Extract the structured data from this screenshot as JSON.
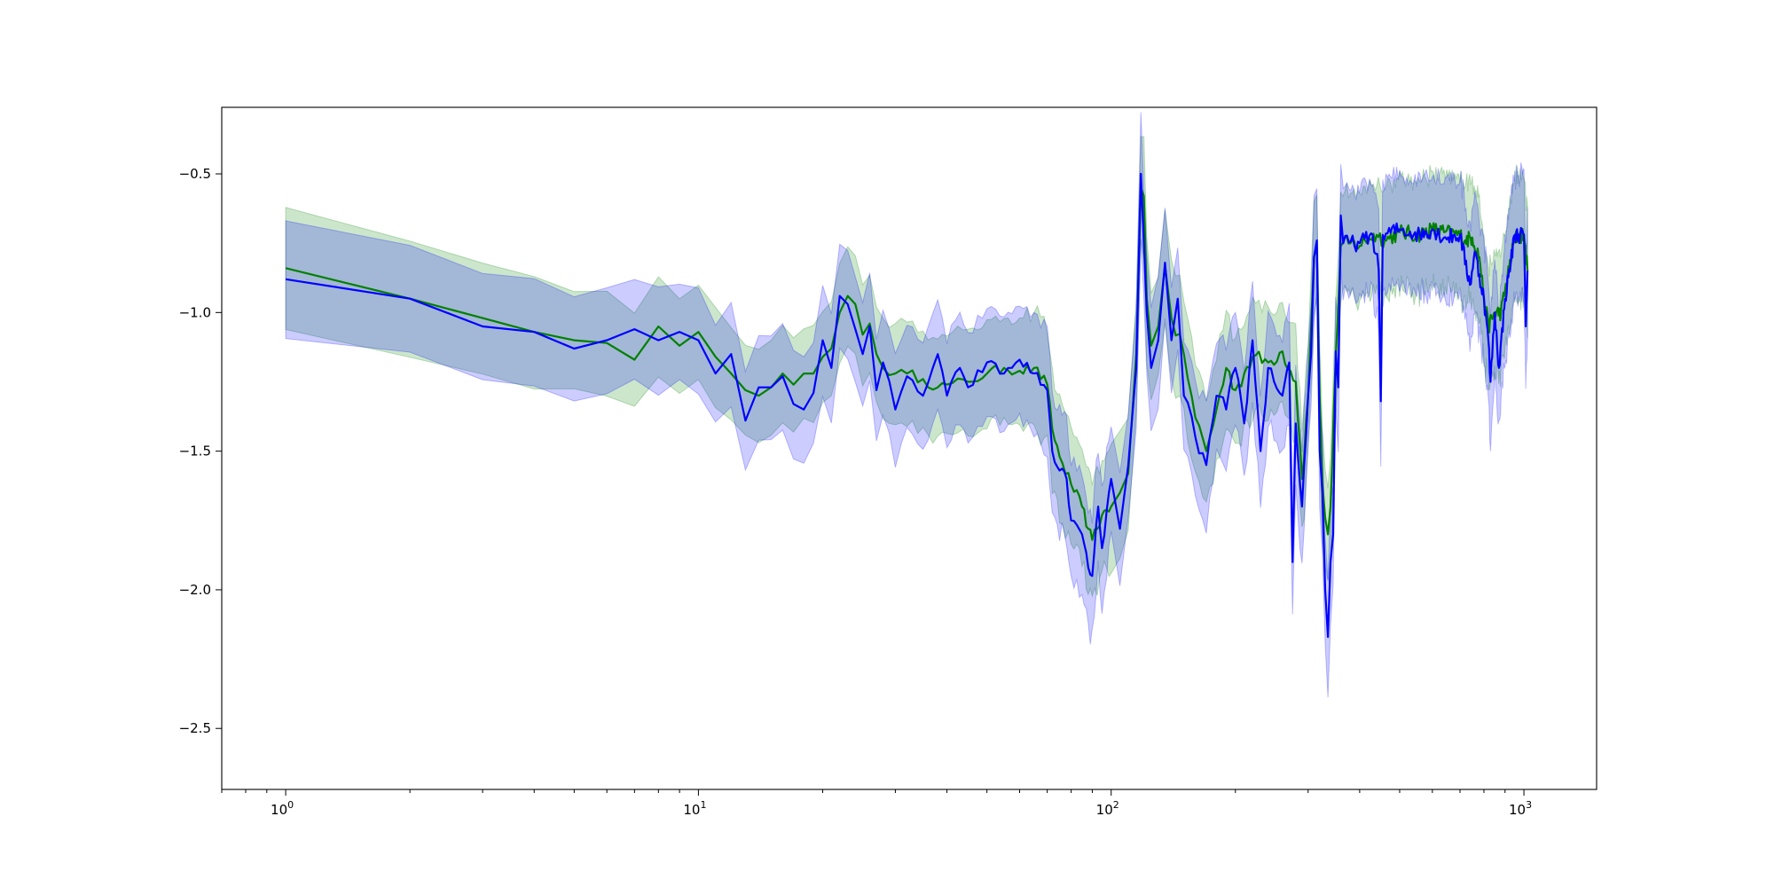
{
  "chart_data": {
    "type": "line",
    "title": "",
    "xlabel": "",
    "ylabel": "",
    "x_scale": "log",
    "xlim": [
      0.7,
      1500
    ],
    "ylim": [
      -2.72,
      -0.26
    ],
    "grid": false,
    "legend": "none",
    "x_ticks": [
      {
        "value": 1,
        "base": "10",
        "exp": "0"
      },
      {
        "value": 10,
        "base": "10",
        "exp": "1"
      },
      {
        "value": 100,
        "base": "10",
        "exp": "2"
      },
      {
        "value": 1000,
        "base": "10",
        "exp": "3"
      }
    ],
    "y_ticks": [
      {
        "value": -0.5,
        "label": "−0.5"
      },
      {
        "value": -1.0,
        "label": "−1.0"
      },
      {
        "value": -1.5,
        "label": "−1.5"
      },
      {
        "value": -2.0,
        "label": "−2.0"
      },
      {
        "value": -2.5,
        "label": "−2.5"
      }
    ],
    "series": [
      {
        "color": "#008000",
        "band_color": "#008000",
        "band_opacity": 0.2,
        "band_width": [
          [
            1,
            0.21
          ],
          [
            10,
            0.16
          ],
          [
            20,
            0.16
          ],
          [
            70,
            0.18
          ],
          [
            200,
            0.17
          ],
          [
            350,
            0.16
          ],
          [
            1000,
            0.19
          ]
        ],
        "points": [
          [
            1,
            -0.84
          ],
          [
            2,
            -0.95
          ],
          [
            3,
            -1.02
          ],
          [
            4,
            -1.07
          ],
          [
            5,
            -1.1
          ],
          [
            6,
            -1.11
          ],
          [
            7,
            -1.17
          ],
          [
            8,
            -1.05
          ],
          [
            9,
            -1.12
          ],
          [
            10,
            -1.07
          ],
          [
            11,
            -1.16
          ],
          [
            12,
            -1.22
          ],
          [
            13,
            -1.28
          ],
          [
            14,
            -1.3
          ],
          [
            15,
            -1.27
          ],
          [
            16,
            -1.22
          ],
          [
            17,
            -1.26
          ],
          [
            18,
            -1.22
          ],
          [
            19,
            -1.22
          ],
          [
            20,
            -1.16
          ],
          [
            21,
            -1.13
          ],
          [
            22,
            -1.0
          ],
          [
            23,
            -0.94
          ],
          [
            24,
            -0.97
          ],
          [
            25,
            -1.08
          ],
          [
            26,
            -1.04
          ],
          [
            27,
            -1.15
          ],
          [
            28,
            -1.2
          ],
          [
            30,
            -1.22
          ],
          [
            32,
            -1.22
          ],
          [
            35,
            -1.24
          ],
          [
            38,
            -1.27
          ],
          [
            40,
            -1.26
          ],
          [
            45,
            -1.25
          ],
          [
            50,
            -1.22
          ],
          [
            55,
            -1.2
          ],
          [
            60,
            -1.21
          ],
          [
            65,
            -1.2
          ],
          [
            70,
            -1.26
          ],
          [
            72,
            -1.42
          ],
          [
            75,
            -1.52
          ],
          [
            80,
            -1.62
          ],
          [
            85,
            -1.7
          ],
          [
            88,
            -1.78
          ],
          [
            90,
            -1.82
          ],
          [
            95,
            -1.73
          ],
          [
            100,
            -1.7
          ],
          [
            105,
            -1.65
          ],
          [
            110,
            -1.58
          ],
          [
            115,
            -1.15
          ],
          [
            118,
            -0.55
          ],
          [
            120,
            -0.58
          ],
          [
            122,
            -0.95
          ],
          [
            125,
            -1.12
          ],
          [
            130,
            -1.05
          ],
          [
            135,
            -0.83
          ],
          [
            140,
            -1.02
          ],
          [
            150,
            -1.15
          ],
          [
            160,
            -1.38
          ],
          [
            170,
            -1.5
          ],
          [
            180,
            -1.35
          ],
          [
            190,
            -1.2
          ],
          [
            200,
            -1.28
          ],
          [
            210,
            -1.22
          ],
          [
            220,
            -1.16
          ],
          [
            240,
            -1.18
          ],
          [
            260,
            -1.14
          ],
          [
            280,
            -1.25
          ],
          [
            290,
            -1.6
          ],
          [
            300,
            -1.3
          ],
          [
            310,
            -0.8
          ],
          [
            315,
            -0.76
          ],
          [
            320,
            -1.3
          ],
          [
            325,
            -1.62
          ],
          [
            330,
            -1.74
          ],
          [
            335,
            -1.8
          ],
          [
            340,
            -1.7
          ],
          [
            350,
            -1.16
          ],
          [
            360,
            -0.76
          ],
          [
            380,
            -0.75
          ],
          [
            400,
            -0.76
          ],
          [
            420,
            -0.73
          ],
          [
            440,
            -0.72
          ],
          [
            460,
            -0.74
          ],
          [
            500,
            -0.71
          ],
          [
            550,
            -0.72
          ],
          [
            600,
            -0.7
          ],
          [
            640,
            -0.71
          ],
          [
            700,
            -0.72
          ],
          [
            720,
            -0.74
          ],
          [
            750,
            -0.73
          ],
          [
            780,
            -0.8
          ],
          [
            800,
            -0.95
          ],
          [
            820,
            -1.05
          ],
          [
            850,
            -1.0
          ],
          [
            880,
            -1.0
          ],
          [
            900,
            -0.92
          ],
          [
            950,
            -0.73
          ],
          [
            1000,
            -0.72
          ],
          [
            1020,
            -0.85
          ]
        ]
      },
      {
        "color": "#0000ff",
        "band_color": "#0000ff",
        "band_opacity": 0.2,
        "band_width": [
          [
            1,
            0.2
          ],
          [
            10,
            0.17
          ],
          [
            20,
            0.18
          ],
          [
            70,
            0.19
          ],
          [
            200,
            0.18
          ],
          [
            350,
            0.17
          ],
          [
            1000,
            0.19
          ]
        ],
        "points": [
          [
            1,
            -0.88
          ],
          [
            2,
            -0.95
          ],
          [
            3,
            -1.05
          ],
          [
            4,
            -1.07
          ],
          [
            5,
            -1.13
          ],
          [
            6,
            -1.1
          ],
          [
            7,
            -1.06
          ],
          [
            8,
            -1.1
          ],
          [
            9,
            -1.07
          ],
          [
            10,
            -1.1
          ],
          [
            11,
            -1.22
          ],
          [
            12,
            -1.15
          ],
          [
            13,
            -1.39
          ],
          [
            14,
            -1.27
          ],
          [
            15,
            -1.27
          ],
          [
            16,
            -1.23
          ],
          [
            17,
            -1.33
          ],
          [
            18,
            -1.35
          ],
          [
            19,
            -1.29
          ],
          [
            20,
            -1.1
          ],
          [
            21,
            -1.2
          ],
          [
            22,
            -0.94
          ],
          [
            23,
            -0.97
          ],
          [
            24,
            -1.06
          ],
          [
            25,
            -1.15
          ],
          [
            26,
            -1.05
          ],
          [
            27,
            -1.28
          ],
          [
            28,
            -1.18
          ],
          [
            30,
            -1.35
          ],
          [
            32,
            -1.23
          ],
          [
            35,
            -1.3
          ],
          [
            38,
            -1.15
          ],
          [
            40,
            -1.3
          ],
          [
            43,
            -1.2
          ],
          [
            45,
            -1.27
          ],
          [
            50,
            -1.18
          ],
          [
            55,
            -1.22
          ],
          [
            60,
            -1.17
          ],
          [
            65,
            -1.22
          ],
          [
            70,
            -1.28
          ],
          [
            72,
            -1.5
          ],
          [
            75,
            -1.57
          ],
          [
            78,
            -1.6
          ],
          [
            80,
            -1.75
          ],
          [
            85,
            -1.8
          ],
          [
            88,
            -1.92
          ],
          [
            90,
            -1.95
          ],
          [
            93,
            -1.7
          ],
          [
            95,
            -1.85
          ],
          [
            100,
            -1.6
          ],
          [
            105,
            -1.78
          ],
          [
            110,
            -1.55
          ],
          [
            115,
            -1.2
          ],
          [
            118,
            -0.5
          ],
          [
            120,
            -0.75
          ],
          [
            122,
            -1.0
          ],
          [
            125,
            -1.2
          ],
          [
            130,
            -1.1
          ],
          [
            135,
            -0.82
          ],
          [
            140,
            -1.1
          ],
          [
            145,
            -0.95
          ],
          [
            150,
            -1.3
          ],
          [
            160,
            -1.45
          ],
          [
            170,
            -1.55
          ],
          [
            180,
            -1.3
          ],
          [
            190,
            -1.35
          ],
          [
            200,
            -1.2
          ],
          [
            210,
            -1.4
          ],
          [
            220,
            -1.1
          ],
          [
            230,
            -1.5
          ],
          [
            240,
            -1.2
          ],
          [
            260,
            -1.3
          ],
          [
            270,
            -1.18
          ],
          [
            275,
            -1.9
          ],
          [
            280,
            -1.4
          ],
          [
            290,
            -1.7
          ],
          [
            300,
            -1.3
          ],
          [
            305,
            -1.15
          ],
          [
            310,
            -0.8
          ],
          [
            315,
            -0.74
          ],
          [
            320,
            -1.5
          ],
          [
            325,
            -1.65
          ],
          [
            330,
            -2.0
          ],
          [
            335,
            -2.17
          ],
          [
            340,
            -1.9
          ],
          [
            345,
            -1.8
          ],
          [
            350,
            -1.14
          ],
          [
            355,
            -1.27
          ],
          [
            360,
            -0.65
          ],
          [
            365,
            -0.75
          ],
          [
            400,
            -0.75
          ],
          [
            430,
            -0.72
          ],
          [
            445,
            -0.85
          ],
          [
            450,
            -1.32
          ],
          [
            455,
            -0.72
          ],
          [
            500,
            -0.7
          ],
          [
            560,
            -0.72
          ],
          [
            600,
            -0.7
          ],
          [
            640,
            -0.73
          ],
          [
            700,
            -0.72
          ],
          [
            740,
            -0.9
          ],
          [
            760,
            -0.78
          ],
          [
            800,
            -0.95
          ],
          [
            820,
            -1.1
          ],
          [
            830,
            -1.25
          ],
          [
            850,
            -1.0
          ],
          [
            870,
            -1.2
          ],
          [
            900,
            -0.95
          ],
          [
            950,
            -0.72
          ],
          [
            1000,
            -0.72
          ],
          [
            1010,
            -1.05
          ],
          [
            1020,
            -0.85
          ]
        ]
      }
    ]
  }
}
